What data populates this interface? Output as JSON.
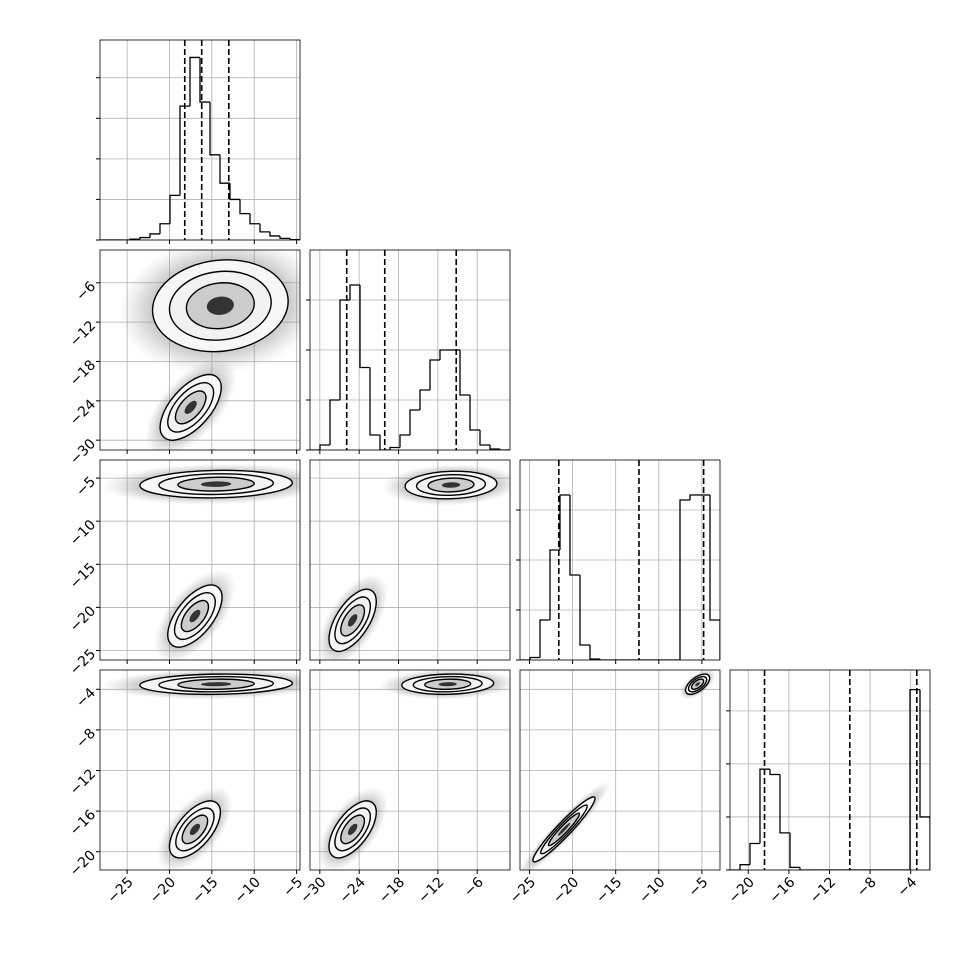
{
  "chart_data": {
    "type": "corner",
    "params": [
      {
        "lim": [
          -28.2,
          -4.6
        ],
        "ticks": [
          {
            "value": -25,
            "label": "−25"
          },
          {
            "value": -20,
            "label": "−20"
          },
          {
            "value": -15,
            "label": "−15"
          },
          {
            "value": -10,
            "label": "−10"
          },
          {
            "value": -5,
            "label": "−5"
          }
        ]
      },
      {
        "lim": [
          -31.5,
          -1
        ],
        "ticks": [
          {
            "value": -30,
            "label": "−30"
          },
          {
            "value": -24,
            "label": "−24"
          },
          {
            "value": -18,
            "label": "−18"
          },
          {
            "value": -12,
            "label": "−12"
          },
          {
            "value": -6,
            "label": "−6"
          }
        ]
      },
      {
        "lim": [
          -26.1,
          -2.9
        ],
        "ticks": [
          {
            "value": -25,
            "label": "−25"
          },
          {
            "value": -20,
            "label": "−20"
          },
          {
            "value": -15,
            "label": "−15"
          },
          {
            "value": -10,
            "label": "−10"
          },
          {
            "value": -5,
            "label": "−5"
          }
        ]
      },
      {
        "lim": [
          -21.8,
          -2.1
        ],
        "ticks": [
          {
            "value": -20,
            "label": "−20"
          },
          {
            "value": -16,
            "label": "−16"
          },
          {
            "value": -12,
            "label": "−12"
          },
          {
            "value": -8,
            "label": "−8"
          },
          {
            "value": -4,
            "label": "−4"
          }
        ]
      }
    ],
    "grid": true,
    "histograms": [
      {
        "counts": [
          0,
          0,
          0,
          20,
          60,
          150,
          400,
          1100,
          3300,
          4500,
          3400,
          2100,
          1400,
          1000,
          650,
          400,
          200,
          100,
          40,
          10
        ],
        "ylim": [
          0,
          4930
        ],
        "yticks": [
          0,
          1000,
          2000,
          3000,
          4000
        ],
        "quantiles": [
          -18.2,
          -16.2,
          -13.0
        ]
      },
      {
        "counts": [
          0,
          100,
          1000,
          3000,
          3300,
          1650,
          300,
          0,
          50,
          300,
          800,
          1200,
          1800,
          2000,
          2000,
          1100,
          400,
          100,
          20,
          0
        ],
        "ylim": [
          0,
          4000
        ],
        "yticks": [
          0,
          1000,
          2000,
          3000
        ],
        "quantiles": [
          -25.9,
          -20.1,
          -9.2
        ]
      },
      {
        "counts": [
          0,
          50,
          800,
          2200,
          3300,
          1700,
          300,
          20,
          0,
          0,
          0,
          0,
          0,
          0,
          0,
          0,
          3200,
          3300,
          3300,
          800
        ],
        "ylim": [
          0,
          4000
        ],
        "yticks": [
          0,
          1000,
          2000,
          3000
        ],
        "quantiles": [
          -21.6,
          -12.3,
          -4.8
        ]
      },
      {
        "counts": [
          0,
          100,
          500,
          1900,
          1800,
          700,
          50,
          0,
          0,
          0,
          0,
          0,
          0,
          0,
          0,
          0,
          0,
          0,
          3400,
          1000
        ],
        "ylim": [
          0,
          3770
        ],
        "yticks": [
          0,
          1000,
          2000,
          3000
        ],
        "quantiles": [
          -18.4,
          -10.0,
          -3.4
        ]
      }
    ],
    "panels": [
      {
        "clusters": [
          {
            "x": -14,
            "y": -9.5,
            "sx": 4,
            "sy": 3.5,
            "rho": 0.1
          },
          {
            "x": -17.5,
            "y": -25,
            "sx": 1.8,
            "sy": 2.5,
            "rho": 0.6
          }
        ]
      },
      {
        "clusters": [
          {
            "x": -14.5,
            "y": -5.7,
            "sx": 4.5,
            "sy": 0.8,
            "rho": 0.1
          },
          {
            "x": -17,
            "y": -21,
            "sx": 1.6,
            "sy": 1.8,
            "rho": 0.6
          }
        ]
      },
      {
        "clusters": [
          {
            "x": -10,
            "y": -5.8,
            "sx": 3.5,
            "sy": 0.8,
            "rho": 0.1
          },
          {
            "x": -25,
            "y": -21.5,
            "sx": 1.8,
            "sy": 1.8,
            "rho": 0.6
          }
        ]
      },
      {
        "clusters": [
          {
            "x": -14.5,
            "y": -3.5,
            "sx": 4.5,
            "sy": 0.5,
            "rho": 0.1
          },
          {
            "x": -17,
            "y": -17.8,
            "sx": 1.5,
            "sy": 1.4,
            "rho": 0.6
          }
        ]
      },
      {
        "clusters": [
          {
            "x": -10.5,
            "y": -3.5,
            "sx": 3.5,
            "sy": 0.5,
            "rho": 0.1
          },
          {
            "x": -25,
            "y": -17.8,
            "sx": 1.8,
            "sy": 1.4,
            "rho": 0.6
          }
        ]
      },
      {
        "clusters": [
          {
            "x": -5.5,
            "y": -3.5,
            "sx": 0.7,
            "sy": 0.5,
            "rho": 0.6
          },
          {
            "x": -21,
            "y": -17.8,
            "sx": 1.8,
            "sy": 1.6,
            "rho": 0.95
          }
        ]
      }
    ]
  }
}
